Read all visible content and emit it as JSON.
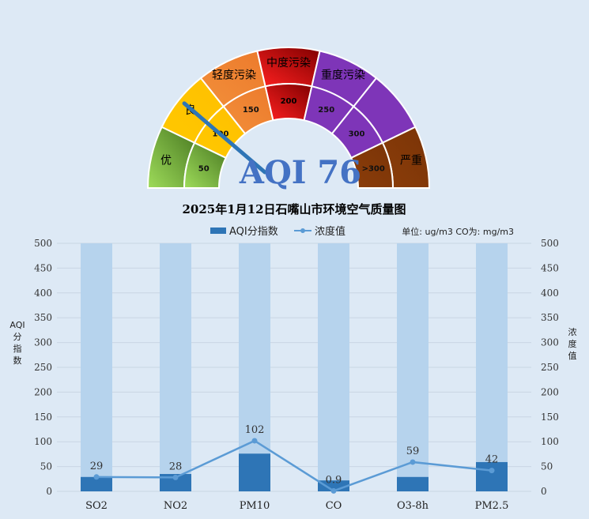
{
  "gauge": {
    "bands": [
      {
        "name": "优",
        "tick": "50",
        "color_light": "#9edc5a",
        "color_dark": "#4a7a22"
      },
      {
        "name": "良",
        "tick": "100",
        "color_light": "#ffc800",
        "color_dark": "#ffc000"
      },
      {
        "name": "轻度污染",
        "tick": "150",
        "color_light": "#f28f3a",
        "color_dark": "#ec7a2c"
      },
      {
        "name": "中度污染",
        "tick": "200",
        "color_light": "#ff2020",
        "color_dark": "#800000"
      },
      {
        "name": "重度污染",
        "tick": "250",
        "color_light": "#7e35b8",
        "color_dark": "#7e35b8"
      },
      {
        "name": "",
        "tick": "300",
        "color_light": "#7e35b8",
        "color_dark": "#7e35b8"
      },
      {
        "name": "严重",
        "tick": ">300",
        "color_light": "#8b3d0a",
        "color_dark": "#7a3407"
      }
    ],
    "value": 76,
    "value_label": "AQI 76",
    "needle_color": "#2e75b6",
    "value_color": "#4472c4"
  },
  "chart_data": {
    "type": "bar",
    "title": "2025年1月12日石嘴山市环境空气质量图",
    "categories": [
      "SO2",
      "NO2",
      "PM10",
      "CO",
      "O3-8h",
      "PM2.5"
    ],
    "series": [
      {
        "name": "AQI分指数",
        "type": "bar",
        "values": [
          29,
          35,
          76,
          22,
          29,
          59
        ],
        "color": "#2e75b6"
      },
      {
        "name": "浓度值",
        "type": "line",
        "axis": "right",
        "values": [
          29,
          28,
          102,
          0.9,
          59,
          42
        ],
        "labels": [
          "29",
          "28",
          "102",
          "0.9",
          "59",
          "42"
        ],
        "color": "#5b9bd5"
      }
    ],
    "background_bars": {
      "value": 500,
      "color": "#b6d3ed"
    },
    "ylabel_left": "AQI分指数",
    "ylabel_right": "浓度值",
    "ylim": [
      0,
      500
    ],
    "yticks": [
      "0",
      "50",
      "100",
      "150",
      "200",
      "250",
      "300",
      "350",
      "400",
      "450",
      "500"
    ],
    "legend_position": "top-center",
    "unit_note": "单位: ug/m3  CO为: mg/m3",
    "grid": true
  }
}
